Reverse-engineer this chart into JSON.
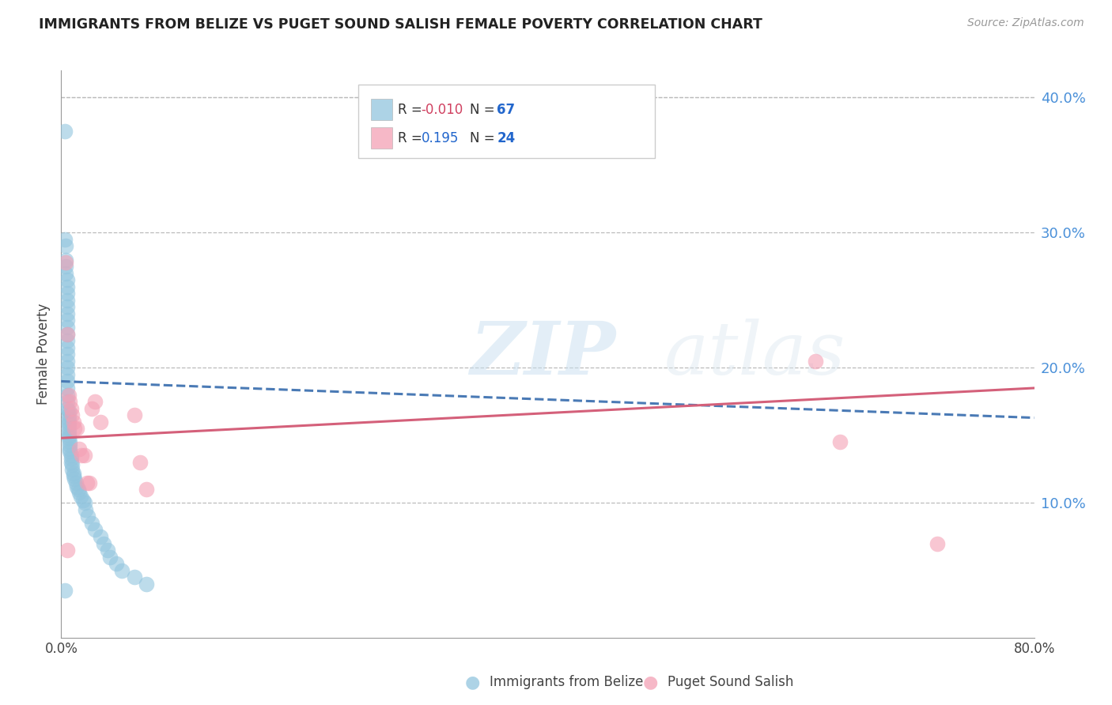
{
  "title": "IMMIGRANTS FROM BELIZE VS PUGET SOUND SALISH FEMALE POVERTY CORRELATION CHART",
  "source": "Source: ZipAtlas.com",
  "ylabel": "Female Poverty",
  "xlim": [
    0.0,
    0.8
  ],
  "ylim": [
    0.0,
    0.42
  ],
  "legend_r1_val": "-0.010",
  "legend_n1": "67",
  "legend_r2_val": "0.195",
  "legend_n2": "24",
  "legend_label1": "Immigrants from Belize",
  "legend_label2": "Puget Sound Salish",
  "blue_color": "#92c5de",
  "pink_color": "#f4a0b5",
  "blue_line_color": "#4a7ab5",
  "pink_line_color": "#d4607a",
  "watermark_zip": "ZIP",
  "watermark_atlas": "atlas",
  "blue_scatter_x": [
    0.003,
    0.003,
    0.004,
    0.004,
    0.004,
    0.004,
    0.005,
    0.005,
    0.005,
    0.005,
    0.005,
    0.005,
    0.005,
    0.005,
    0.005,
    0.005,
    0.005,
    0.005,
    0.005,
    0.005,
    0.005,
    0.005,
    0.005,
    0.005,
    0.005,
    0.005,
    0.006,
    0.006,
    0.006,
    0.006,
    0.006,
    0.006,
    0.006,
    0.006,
    0.006,
    0.007,
    0.007,
    0.007,
    0.007,
    0.008,
    0.008,
    0.008,
    0.009,
    0.009,
    0.01,
    0.01,
    0.011,
    0.012,
    0.013,
    0.014,
    0.015,
    0.016,
    0.018,
    0.019,
    0.02,
    0.022,
    0.025,
    0.028,
    0.032,
    0.035,
    0.038,
    0.04,
    0.045,
    0.05,
    0.06,
    0.07,
    0.003
  ],
  "blue_scatter_y": [
    0.375,
    0.295,
    0.29,
    0.28,
    0.275,
    0.27,
    0.265,
    0.26,
    0.255,
    0.25,
    0.245,
    0.24,
    0.235,
    0.23,
    0.225,
    0.22,
    0.215,
    0.21,
    0.205,
    0.2,
    0.195,
    0.19,
    0.185,
    0.18,
    0.175,
    0.17,
    0.168,
    0.165,
    0.162,
    0.16,
    0.158,
    0.155,
    0.152,
    0.15,
    0.148,
    0.145,
    0.143,
    0.14,
    0.138,
    0.135,
    0.133,
    0.13,
    0.128,
    0.125,
    0.122,
    0.12,
    0.118,
    0.115,
    0.112,
    0.11,
    0.108,
    0.105,
    0.102,
    0.1,
    0.095,
    0.09,
    0.085,
    0.08,
    0.075,
    0.07,
    0.065,
    0.06,
    0.055,
    0.05,
    0.045,
    0.04,
    0.035
  ],
  "pink_scatter_x": [
    0.004,
    0.005,
    0.006,
    0.007,
    0.008,
    0.009,
    0.01,
    0.011,
    0.013,
    0.015,
    0.017,
    0.019,
    0.021,
    0.023,
    0.025,
    0.028,
    0.032,
    0.06,
    0.065,
    0.07,
    0.62,
    0.64,
    0.72,
    0.005
  ],
  "pink_scatter_y": [
    0.278,
    0.225,
    0.18,
    0.175,
    0.17,
    0.165,
    0.16,
    0.155,
    0.155,
    0.14,
    0.135,
    0.135,
    0.115,
    0.115,
    0.17,
    0.175,
    0.16,
    0.165,
    0.13,
    0.11,
    0.205,
    0.145,
    0.07,
    0.065
  ],
  "blue_trendline_x": [
    0.0,
    0.8
  ],
  "blue_trendline_y": [
    0.19,
    0.163
  ],
  "pink_trendline_x": [
    0.0,
    0.8
  ],
  "pink_trendline_y": [
    0.148,
    0.185
  ]
}
